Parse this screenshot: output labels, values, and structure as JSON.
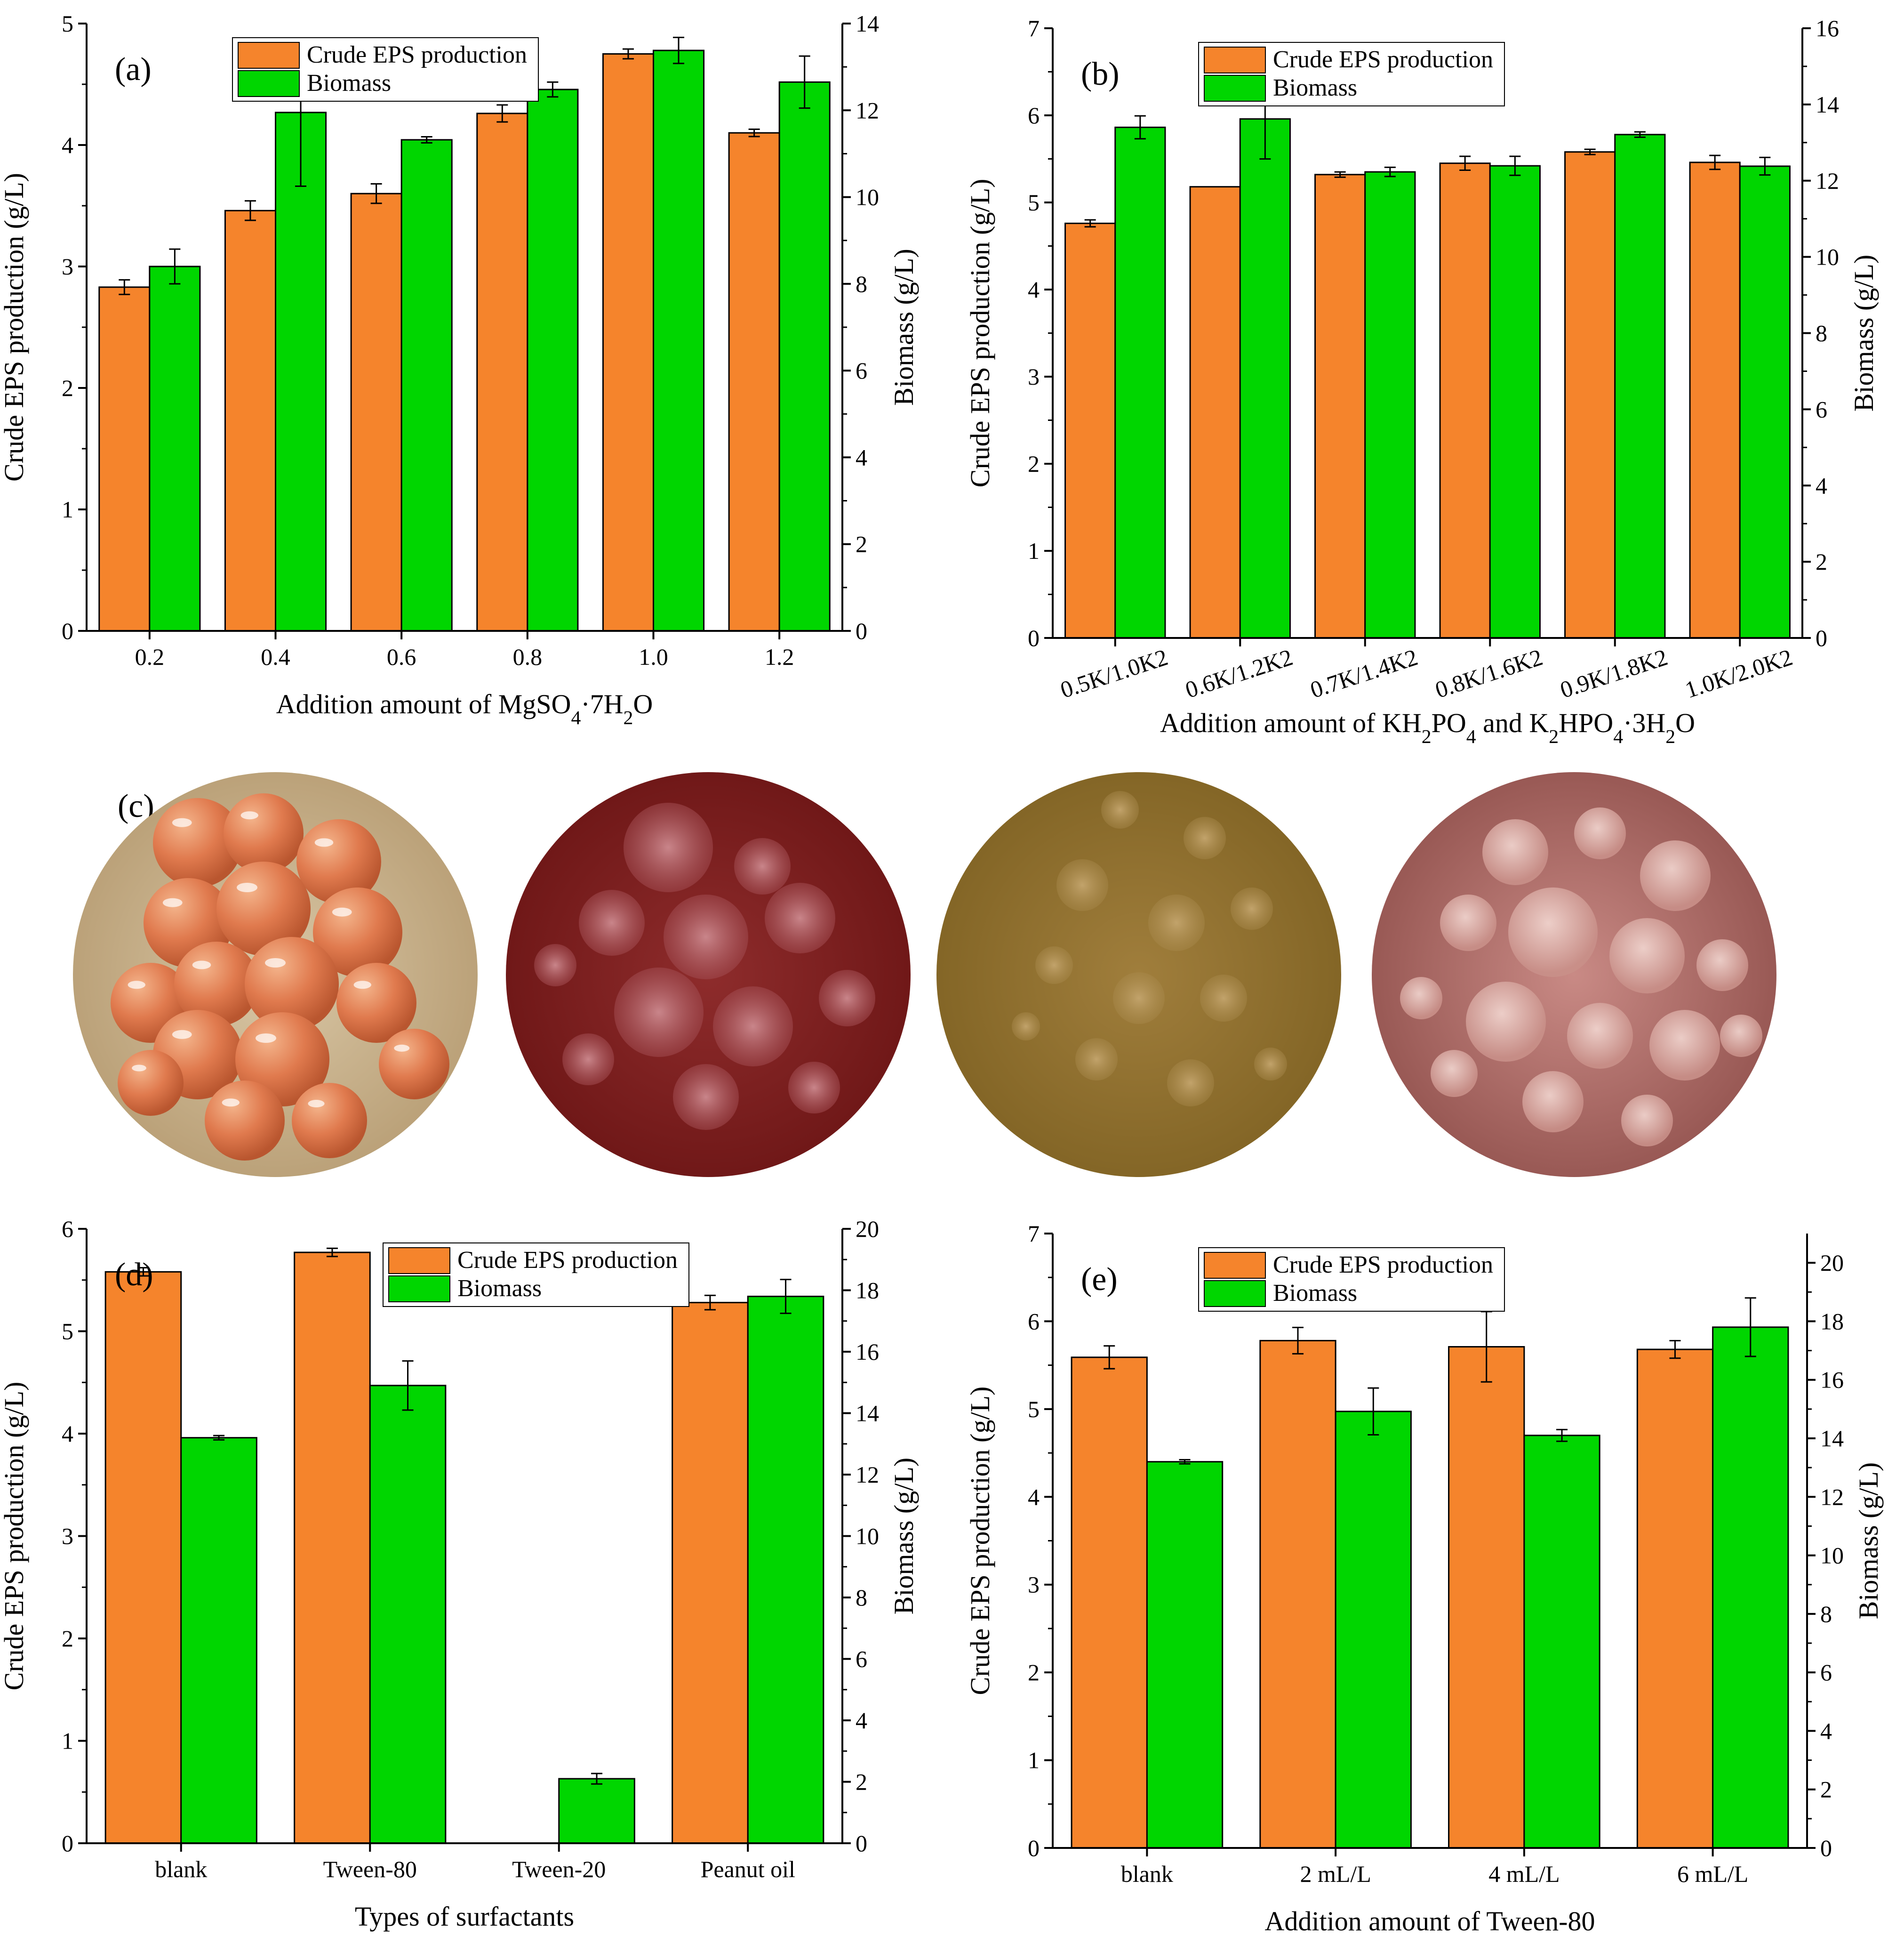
{
  "colors": {
    "eps": "#F5842C",
    "biomass": "#00D600",
    "axis": "#000000"
  },
  "legend": {
    "eps": "Crude EPS production",
    "biomass": "Biomass"
  },
  "photos": {
    "label": "(c)",
    "items": [
      {
        "name": "orange-pellets",
        "desc": "pellets"
      },
      {
        "name": "dark-red-colonies",
        "desc": "colonies"
      },
      {
        "name": "olive-colonies",
        "desc": "colonies"
      },
      {
        "name": "pink-colonies",
        "desc": "colonies"
      }
    ]
  },
  "chart_data": [
    {
      "id": "a",
      "label": "(a)",
      "type": "bar",
      "categories": [
        "0.2",
        "0.4",
        "0.6",
        "0.8",
        "1.0",
        "1.2"
      ],
      "xlabel": "Addition amount of MgSO4·7H2O",
      "ylabel": "Crude EPS production (g/L)",
      "y2label": "Biomass (g/L)",
      "ylim": [
        0,
        5
      ],
      "y2lim": [
        0,
        14
      ],
      "yticks": [
        "0",
        "1",
        "2",
        "3",
        "4",
        "5"
      ],
      "y2ticks": [
        "0",
        "2",
        "4",
        "6",
        "8",
        "10",
        "12",
        "14"
      ],
      "rotate_xticks": false,
      "series": [
        {
          "name": "Crude EPS production",
          "axis": "left",
          "values": [
            2.83,
            3.46,
            3.6,
            4.26,
            4.75,
            4.1
          ],
          "errors": [
            0.06,
            0.08,
            0.08,
            0.07,
            0.04,
            0.03
          ]
        },
        {
          "name": "Biomass",
          "axis": "right",
          "values": [
            8.4,
            11.95,
            11.32,
            12.48,
            13.38,
            12.65
          ],
          "errors": [
            0.4,
            1.7,
            0.07,
            0.17,
            0.3,
            0.6
          ]
        }
      ]
    },
    {
      "id": "b",
      "label": "(b)",
      "type": "bar",
      "categories": [
        "0.5K/1.0K2",
        "0.6K/1.2K2",
        "0.7K/1.4K2",
        "0.8K/1.6K2",
        "0.9K/1.8K2",
        "1.0K/2.0K2"
      ],
      "xlabel": "Addition amount of KH2PO4 and K2HPO4·3H2O",
      "ylabel": "Crude EPS production (g/L)",
      "y2label": "Biomass (g/L)",
      "ylim": [
        0,
        7
      ],
      "y2lim": [
        0,
        16
      ],
      "yticks": [
        "0",
        "1",
        "2",
        "3",
        "4",
        "5",
        "6",
        "7"
      ],
      "y2ticks": [
        "0",
        "2",
        "4",
        "6",
        "8",
        "10",
        "12",
        "14",
        "16"
      ],
      "rotate_xticks": true,
      "series": [
        {
          "name": "Crude EPS production",
          "axis": "left",
          "values": [
            4.76,
            5.18,
            5.32,
            5.45,
            5.58,
            5.46
          ],
          "errors": [
            0.04,
            0.0,
            0.03,
            0.08,
            0.03,
            0.08
          ]
        },
        {
          "name": "Biomass",
          "axis": "right",
          "values": [
            13.4,
            13.62,
            12.23,
            12.39,
            13.21,
            12.38
          ],
          "errors": [
            0.3,
            1.05,
            0.12,
            0.25,
            0.07,
            0.23
          ]
        }
      ]
    },
    {
      "id": "d",
      "label": "(d)",
      "type": "bar",
      "categories": [
        "blank",
        "Tween-80",
        "Tween-20",
        "Peanut oil"
      ],
      "xlabel": "Types of surfactants",
      "ylabel": "Crude EPS production (g/L)",
      "y2label": "Biomass (g/L)",
      "ylim": [
        0,
        6
      ],
      "y2lim": [
        0,
        20
      ],
      "yticks": [
        "0",
        "1",
        "2",
        "3",
        "4",
        "5",
        "6"
      ],
      "y2ticks": [
        "0",
        "2",
        "4",
        "6",
        "8",
        "10",
        "12",
        "14",
        "16",
        "18",
        "20"
      ],
      "rotate_xticks": false,
      "series": [
        {
          "name": "Crude EPS production",
          "axis": "left",
          "values": [
            5.58,
            5.77,
            0,
            5.28
          ],
          "errors": [
            0.04,
            0.04,
            0,
            0.07
          ]
        },
        {
          "name": "Biomass",
          "axis": "right",
          "values": [
            13.2,
            14.9,
            2.1,
            17.8
          ],
          "errors": [
            0.07,
            0.8,
            0.17,
            0.55
          ]
        }
      ]
    },
    {
      "id": "e",
      "label": "(e)",
      "type": "bar",
      "categories": [
        "blank",
        "2 mL/L",
        "4 mL/L",
        "6 mL/L"
      ],
      "xlabel": "Addition amount of Tween-80",
      "ylabel": "Crude EPS production (g/L)",
      "y2label": "Biomass (g/L)",
      "ylim": [
        0,
        7
      ],
      "y2lim": [
        0,
        21
      ],
      "yticks": [
        "0",
        "1",
        "2",
        "3",
        "4",
        "5",
        "6",
        "7"
      ],
      "y2ticks": [
        "0",
        "2",
        "4",
        "6",
        "8",
        "10",
        "12",
        "14",
        "16",
        "18",
        "20"
      ],
      "rotate_xticks": false,
      "series": [
        {
          "name": "Crude EPS production",
          "axis": "left",
          "values": [
            5.59,
            5.78,
            5.71,
            5.68
          ],
          "errors": [
            0.13,
            0.15,
            0.4,
            0.1
          ]
        },
        {
          "name": "Biomass",
          "axis": "right",
          "values": [
            13.2,
            14.92,
            14.1,
            17.8
          ],
          "errors": [
            0.07,
            0.8,
            0.2,
            1.0
          ]
        }
      ]
    }
  ]
}
